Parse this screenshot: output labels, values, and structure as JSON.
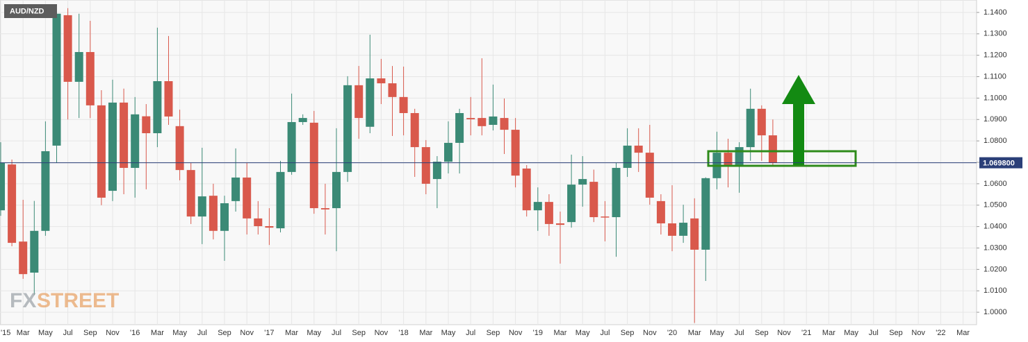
{
  "chart_data": {
    "type": "candlestick",
    "title": "AUD/NZD",
    "watermark": [
      "FX",
      "STREET"
    ],
    "categories": [
      "'15",
      null,
      "Mar",
      null,
      "May",
      null,
      "Jul",
      null,
      "Sep",
      null,
      "Nov",
      null,
      "'16",
      null,
      "Mar",
      null,
      "May",
      null,
      "Jul",
      null,
      "Sep",
      null,
      "Nov",
      null,
      "'17",
      null,
      "Mar",
      null,
      "May",
      null,
      "Jul",
      null,
      "Sep",
      null,
      "Nov",
      null,
      "'18",
      null,
      "Mar",
      null,
      "May",
      null,
      "Jul",
      null,
      "Sep",
      null,
      "Nov",
      null,
      "'19",
      null,
      "Mar",
      null,
      "May",
      null,
      "Jul",
      null,
      "Sep",
      null,
      "Nov",
      null,
      "'20",
      null,
      "Mar",
      null,
      "May",
      null,
      "Jul",
      null,
      "Sep",
      null,
      "Nov",
      null,
      "'21",
      null,
      "Mar",
      null,
      "May",
      null,
      "Jul",
      null,
      "Sep",
      null,
      "Nov",
      null,
      "'22",
      null,
      "Mar"
    ],
    "open": [
      1.0476,
      1.069,
      1.033,
      1.0185,
      1.038,
      1.0778,
      1.1387,
      1.1076,
      1.1215,
      1.0966,
      1.0567,
      1.0979,
      1.0674,
      1.0915,
      1.0836,
      1.1079,
      1.0869,
      1.0664,
      1.0447,
      1.0544,
      1.038,
      1.0519,
      1.0629,
      1.0438,
      1.0402,
      1.0392,
      1.0655,
      1.0888,
      1.0885,
      1.0486,
      1.0486,
      1.0655,
      1.106,
      1.0866,
      1.1092,
      1.1069,
      1.1005,
      1.093,
      1.0771,
      1.0622,
      1.0703,
      1.0791,
      1.0907,
      1.0907,
      1.0875,
      1.0907,
      1.0852,
      1.0671,
      1.0476,
      1.0515,
      1.0415,
      1.0421,
      1.0596,
      1.0609,
      1.0447,
      1.0444,
      1.0674,
      1.0778,
      1.0745,
      1.0519,
      1.0415,
      1.0357,
      1.0438,
      1.0292,
      1.0626,
      1.0745,
      1.0687,
      1.0771,
      1.095,
      1.0826,
      null,
      null,
      null,
      null,
      null,
      null,
      null,
      null,
      null,
      null,
      null,
      null,
      null,
      null,
      null,
      null,
      null
    ],
    "high": [
      1.0794,
      1.0713,
      1.0525,
      1.052,
      1.0891,
      1.141,
      1.142,
      1.1394,
      1.1361,
      1.1037,
      1.1086,
      1.1044,
      1.1005,
      1.0972,
      1.1329,
      1.129,
      1.0946,
      1.0697,
      1.0768,
      1.06,
      1.0544,
      1.0765,
      1.0697,
      1.0519,
      1.0486,
      1.0707,
      1.1021,
      1.0924,
      1.094,
      1.06,
      1.0859,
      1.1102,
      1.115,
      1.1296,
      1.1183,
      1.115,
      1.1147,
      1.095,
      1.0804,
      1.0729,
      1.0891,
      1.095,
      1.1005,
      1.1186,
      1.1063,
      1.0998,
      1.0907,
      1.0687,
      1.0583,
      1.0551,
      1.047,
      1.0736,
      1.0729,
      1.0666,
      1.0519,
      1.0697,
      1.0859,
      1.0859,
      1.0875,
      1.0551,
      1.0593,
      1.0502,
      1.0532,
      1.063,
      1.0843,
      1.081,
      1.0794,
      1.1044,
      1.0966,
      1.09,
      null,
      null,
      null,
      null,
      null,
      null,
      null,
      null,
      null,
      null,
      null,
      null,
      null,
      null,
      null,
      null,
      null
    ],
    "low": [
      1.045,
      1.0308,
      1.0156,
      1.008,
      1.0357,
      1.0697,
      1.09,
      1.0907,
      1.0907,
      1.05,
      1.0519,
      1.0551,
      1.0535,
      1.0574,
      1.0771,
      1.0875,
      1.0616,
      1.0412,
      1.0318,
      1.034,
      1.024,
      1.047,
      1.0363,
      1.0363,
      1.0314,
      1.0373,
      1.0642,
      1.0875,
      1.046,
      1.0363,
      1.0285,
      1.0609,
      1.081,
      1.0836,
      1.0972,
      1.0823,
      1.0826,
      1.0632,
      1.0551,
      1.0486,
      1.0648,
      1.0648,
      1.0826,
      1.0826,
      1.0849,
      1.0739,
      1.0583,
      1.0447,
      1.038,
      1.0357,
      1.0227,
      1.0395,
      1.0493,
      1.0421,
      1.0331,
      1.0259,
      1.0632,
      1.0655,
      1.0502,
      1.0363,
      1.0285,
      1.0324,
      0.995,
      1.0146,
      1.0574,
      1.0583,
      1.0558,
      1.0707,
      1.0707,
      1.0685,
      null,
      null,
      null,
      null,
      null,
      null,
      null,
      null,
      null,
      null,
      null,
      null,
      null,
      null,
      null,
      null,
      null
    ],
    "close": [
      1.0697,
      1.0324,
      1.0178,
      1.038,
      1.0752,
      1.1394,
      1.1076,
      1.1215,
      1.0966,
      1.0535,
      1.0979,
      1.0674,
      1.0924,
      1.0836,
      1.1079,
      1.0914,
      1.0664,
      1.0447,
      1.0541,
      1.038,
      1.0509,
      1.0629,
      1.0438,
      1.0402,
      1.0395,
      1.0655,
      1.0888,
      1.0907,
      1.0486,
      1.048,
      1.0655,
      1.106,
      1.0907,
      1.1092,
      1.1069,
      1.1005,
      1.093,
      1.0771,
      1.06,
      1.0703,
      1.0791,
      1.093,
      1.0901,
      1.0869,
      1.0914,
      1.0852,
      1.0638,
      1.0476,
      1.0515,
      1.0412,
      1.0408,
      1.0596,
      1.0622,
      1.0444,
      1.0444,
      1.0674,
      1.0778,
      1.0745,
      1.0535,
      1.0415,
      1.0357,
      1.0418,
      1.0292,
      1.0626,
      1.0745,
      1.0687,
      1.0771,
      1.095,
      1.0826,
      1.0698,
      null,
      null,
      null,
      null,
      null,
      null,
      null,
      null,
      null,
      null,
      null,
      null,
      null,
      null,
      null,
      null,
      null
    ],
    "up_color": "#3b8a76",
    "down_color": "#d9594c",
    "ylim": [
      0.9942,
      1.1458
    ],
    "yticks": [
      {
        "value": 1.14,
        "label": "1.1400"
      },
      {
        "value": 1.13,
        "label": "1.1300"
      },
      {
        "value": 1.12,
        "label": "1.1200"
      },
      {
        "value": 1.11,
        "label": "1.1100"
      },
      {
        "value": 1.1,
        "label": "1.1000"
      },
      {
        "value": 1.09,
        "label": "1.0900"
      },
      {
        "value": 1.08,
        "label": "1.0800"
      },
      {
        "value": 1.07,
        "label": "1.0700"
      },
      {
        "value": 1.06,
        "label": "1.0600"
      },
      {
        "value": 1.05,
        "label": "1.0500"
      },
      {
        "value": 1.04,
        "label": "1.0400"
      },
      {
        "value": 1.03,
        "label": "1.0300"
      },
      {
        "value": 1.02,
        "label": "1.0200"
      },
      {
        "value": 1.01,
        "label": "1.0100"
      },
      {
        "value": 1.0,
        "label": "1.0000"
      }
    ],
    "last_price": {
      "value": 1.0698,
      "label": "1.069800"
    },
    "grid": true
  }
}
